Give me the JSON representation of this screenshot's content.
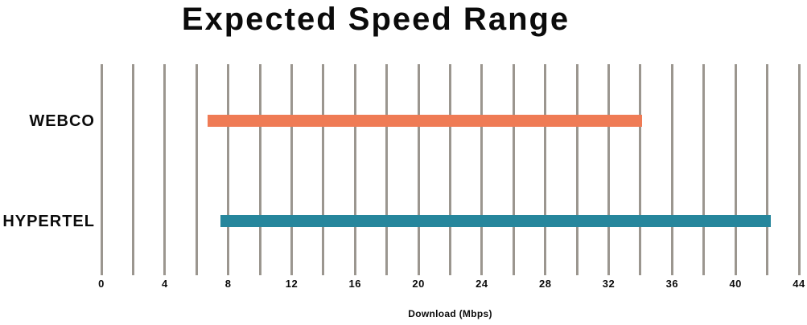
{
  "chart_data": {
    "type": "bar",
    "orientation": "horizontal",
    "title": "Expected Speed Range",
    "xlabel": "Download (Mbps)",
    "ylabel": "",
    "categories": [
      "WEBCO",
      "HYPERTEL"
    ],
    "series": [
      {
        "name": "WEBCO",
        "range_min": 6.7,
        "range_max": 34.1,
        "color": "#EF7B55"
      },
      {
        "name": "HYPERTEL",
        "range_min": 7.5,
        "range_max": 42.2,
        "color": "#26869C"
      }
    ],
    "xlim": [
      0,
      44
    ],
    "xticks": [
      0,
      4,
      8,
      12,
      16,
      20,
      24,
      28,
      32,
      36,
      40,
      44
    ],
    "gridline_step": 2,
    "grid": "vertical-only",
    "legend": false
  },
  "colors": {
    "gridline": "#9B968F",
    "text": "#0B0B0B",
    "background": "#FFFFFF"
  }
}
